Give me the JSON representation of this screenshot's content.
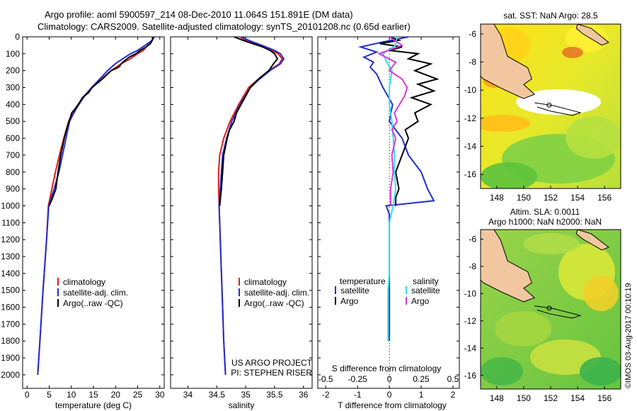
{
  "header": {
    "line1": "Argo profile: aoml 5900597_214 08-Dec-2010 11.064S 151.891E (DM data)",
    "line2": "Climatology: CARS2009. Satellite-adjusted climatology: synTS_20101208.nc (0.65d earlier)"
  },
  "colors": {
    "climatology": "#e41a1c",
    "satellite": "#1f2fd0",
    "argo": "#000000",
    "sat_salinity": "#33e0e8",
    "argo_salinity": "#d43ad4"
  },
  "chart_data": [
    {
      "id": "temperature",
      "type": "line",
      "xlabel": "temperature (deg C)",
      "xlim": [
        -1,
        31
      ],
      "xticks": [
        0,
        5,
        10,
        15,
        20,
        25,
        30
      ],
      "ylim": [
        0,
        2080
      ],
      "yticks": [
        0,
        100,
        200,
        300,
        400,
        500,
        600,
        700,
        800,
        900,
        1000,
        1100,
        1200,
        1300,
        1400,
        1500,
        1600,
        1700,
        1800,
        1900,
        2000
      ],
      "legend": [
        "climatology",
        "satellite-adj. clim.",
        "Argo(..raw -QC)"
      ],
      "series": [
        {
          "name": "climatology",
          "depth": [
            0,
            20,
            50,
            80,
            100,
            130,
            160,
            200,
            250,
            300,
            350,
            400,
            450,
            500,
            600,
            700,
            800,
            900,
            1000,
            1200,
            1500,
            1800,
            2000
          ],
          "values": [
            28.6,
            28.3,
            27.3,
            26.3,
            25.0,
            23.3,
            21.2,
            19.0,
            16.8,
            14.6,
            12.9,
            11.5,
            10.3,
            9.4,
            8.3,
            7.3,
            6.4,
            5.6,
            4.8,
            4.4,
            3.6,
            2.9,
            2.4
          ]
        },
        {
          "name": "satellite",
          "depth": [
            0,
            20,
            50,
            80,
            100,
            130,
            160,
            200,
            250,
            300,
            350,
            400,
            450,
            500,
            600,
            700,
            800,
            900,
            1000,
            1200,
            1500,
            1800,
            2000
          ],
          "values": [
            28.8,
            28.3,
            26.7,
            25.0,
            23.4,
            21.6,
            19.9,
            18.2,
            16.4,
            14.6,
            13.0,
            11.7,
            10.6,
            9.6,
            8.8,
            8.0,
            7.2,
            6.1,
            4.9,
            4.4,
            3.6,
            2.9,
            2.4
          ]
        },
        {
          "name": "argo",
          "depth": [
            0,
            20,
            40,
            60,
            80,
            100,
            120,
            150,
            180,
            200,
            250,
            300,
            330,
            360,
            400,
            450,
            500,
            550,
            600,
            700,
            800,
            900,
            950,
            1000
          ],
          "values": [
            28.4,
            28.3,
            27.9,
            26.9,
            25.6,
            24.6,
            23.1,
            21.6,
            20.7,
            19.0,
            17.0,
            14.7,
            13.9,
            12.5,
            11.6,
            10.1,
            9.5,
            8.9,
            8.4,
            7.6,
            7.0,
            6.5,
            5.8,
            5.0
          ]
        }
      ]
    },
    {
      "id": "salinity",
      "type": "line",
      "xlabel": "salinity",
      "xlim": [
        33.7,
        36.15
      ],
      "xticks": [
        34,
        34.5,
        35,
        35.5,
        36
      ],
      "ylim": [
        0,
        2080
      ],
      "legend": [
        "climatology",
        "satellite-adj. clim.",
        "Argo(..raw -QC)"
      ],
      "annotations": [
        "US ARGO PROJECT",
        "PI: STEPHEN RISER"
      ],
      "series": [
        {
          "name": "climatology",
          "depth": [
            0,
            20,
            50,
            80,
            100,
            130,
            160,
            200,
            250,
            300,
            400,
            500,
            600,
            700,
            800,
            900,
            1000,
            1200,
            1500,
            1800,
            2000
          ],
          "values": [
            34.9,
            35.0,
            35.22,
            35.45,
            35.56,
            35.63,
            35.58,
            35.4,
            35.22,
            35.05,
            34.88,
            34.73,
            34.62,
            34.55,
            34.53,
            34.53,
            34.54,
            34.56,
            34.59,
            34.62,
            34.65
          ]
        },
        {
          "name": "satellite",
          "depth": [
            0,
            20,
            50,
            80,
            100,
            130,
            160,
            200,
            250,
            300,
            400,
            500,
            600,
            700,
            800,
            900,
            1000,
            1200,
            1500,
            1800,
            2000
          ],
          "values": [
            34.92,
            35.05,
            35.28,
            35.5,
            35.6,
            35.66,
            35.6,
            35.42,
            35.24,
            35.08,
            34.9,
            34.76,
            34.67,
            34.6,
            34.58,
            34.56,
            34.54,
            34.56,
            34.59,
            34.62,
            34.65
          ]
        },
        {
          "name": "argo",
          "depth": [
            0,
            20,
            40,
            60,
            80,
            100,
            130,
            160,
            200,
            250,
            300,
            350,
            400,
            450,
            500,
            550,
            600,
            700,
            800,
            900,
            1000
          ],
          "values": [
            34.8,
            34.95,
            35.12,
            35.3,
            35.42,
            35.5,
            35.55,
            35.48,
            35.4,
            35.22,
            35.08,
            35.0,
            34.92,
            34.84,
            34.8,
            34.72,
            34.68,
            34.62,
            34.6,
            34.58,
            34.55
          ]
        }
      ]
    },
    {
      "id": "difference",
      "type": "line",
      "xlabel_bottom": "T difference from climatology",
      "xlabel_top": "S difference from climatology",
      "xlim": [
        -2.25,
        2.2
      ],
      "xticks_bottom": [
        -2,
        -1,
        0,
        1,
        2
      ],
      "xticks_top": [
        "-0.5",
        "-0.25",
        "0",
        "0.25",
        "0.5"
      ],
      "ylim": [
        0,
        2080
      ],
      "legend": {
        "temperature_header": "temperature",
        "salinity_header": "salinity",
        "temperature": [
          "satellite",
          "Argo"
        ],
        "salinity": [
          "satellite",
          "Argo"
        ]
      },
      "series": [
        {
          "name": "temperature satellite",
          "depth": [
            0,
            30,
            60,
            90,
            120,
            150,
            180,
            220,
            300,
            400,
            500,
            600,
            700,
            800,
            900,
            970,
            1000,
            1050,
            1100,
            1200,
            1300,
            1400,
            1500,
            1600,
            1700,
            1800
          ],
          "values": [
            0.6,
            -0.2,
            -0.9,
            -0.4,
            -0.8,
            -0.5,
            -0.6,
            -0.4,
            -0.2,
            0.1,
            0.0,
            0.4,
            0.6,
            1.0,
            1.2,
            1.4,
            -0.1,
            0.0,
            0.0,
            0.0,
            0.0,
            0.0,
            0.0,
            0.0,
            0.0,
            0.0
          ]
        },
        {
          "name": "temperature argo",
          "depth": [
            0,
            20,
            40,
            60,
            80,
            100,
            130,
            160,
            200,
            250,
            280,
            320,
            360,
            400,
            450,
            500,
            550,
            600,
            700,
            800,
            900,
            950,
            1000
          ],
          "values": [
            0.0,
            0.3,
            -0.3,
            0.4,
            0.0,
            0.9,
            0.6,
            1.3,
            0.8,
            1.5,
            0.9,
            1.4,
            0.7,
            1.3,
            0.8,
            0.9,
            0.5,
            0.6,
            0.4,
            0.2,
            0.3,
            0.2,
            0.2
          ]
        },
        {
          "name": "salinity satellite",
          "depth": [
            0,
            50,
            100,
            150,
            200,
            300,
            400,
            500,
            600,
            700,
            800,
            900,
            1000,
            1100,
            1200,
            1300,
            1400,
            1500,
            1600,
            1700,
            1800
          ],
          "values": [
            0.06,
            0.05,
            -0.05,
            -0.02,
            0.02,
            0.0,
            0.0,
            0.02,
            0.03,
            0.04,
            0.04,
            0.05,
            0.03,
            0.0,
            0.0,
            0.0,
            0.0,
            -0.01,
            -0.01,
            -0.01,
            -0.01
          ]
        },
        {
          "name": "salinity argo",
          "depth": [
            0,
            50,
            100,
            150,
            200,
            250,
            300,
            350,
            400,
            450,
            500,
            550,
            600,
            700,
            800,
            900,
            1000
          ],
          "values": [
            0.0,
            0.1,
            -0.08,
            0.05,
            0.0,
            0.1,
            0.14,
            0.12,
            0.08,
            0.04,
            0.06,
            0.02,
            0.05,
            0.02,
            0.03,
            0.01,
            0.01
          ]
        }
      ]
    },
    {
      "id": "sst_map",
      "type": "heatmap",
      "title": "sat. SST: NaN Argo: 28.5",
      "xticks": [
        148,
        150,
        152,
        154,
        156
      ],
      "yticks": [
        -6,
        -8,
        -10,
        -12,
        -14,
        -16
      ],
      "xlim": [
        146.8,
        157.2
      ],
      "ylim": [
        -17,
        -5.3
      ]
    },
    {
      "id": "sla_map",
      "type": "heatmap",
      "title_line1": "Altim. SLA: 0.0011",
      "title_line2": "Argo h1000: NaN h2000: NaN",
      "xticks": [
        148,
        150,
        152,
        154,
        156
      ],
      "yticks": [
        -6,
        -8,
        -10,
        -12,
        -14,
        -16
      ],
      "xlim": [
        146.8,
        157.2
      ],
      "ylim": [
        -17,
        -5.3
      ]
    }
  ],
  "credit": "©IMOS 03-Aug-2017 00:10:19"
}
